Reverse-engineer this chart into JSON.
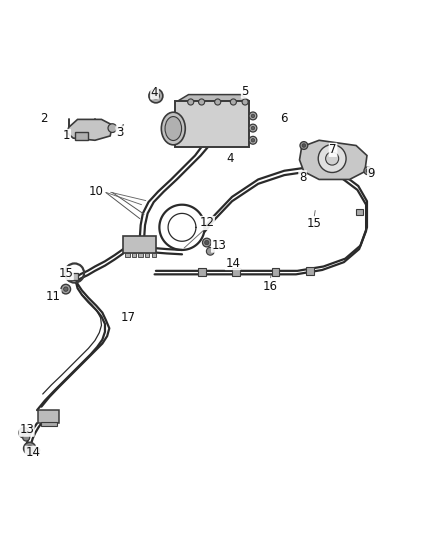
{
  "background_color": "#ffffff",
  "fig_width": 4.38,
  "fig_height": 5.33,
  "dpi": 100,
  "label_fontsize": 8.5,
  "label_color": "#111111",
  "line_color": "#2a2a2a",
  "component_color": "#3a3a3a",
  "gray_fill": "#c8c8c8",
  "dark_gray": "#808080",
  "lw_main": 1.6,
  "lw_thin": 0.9
}
